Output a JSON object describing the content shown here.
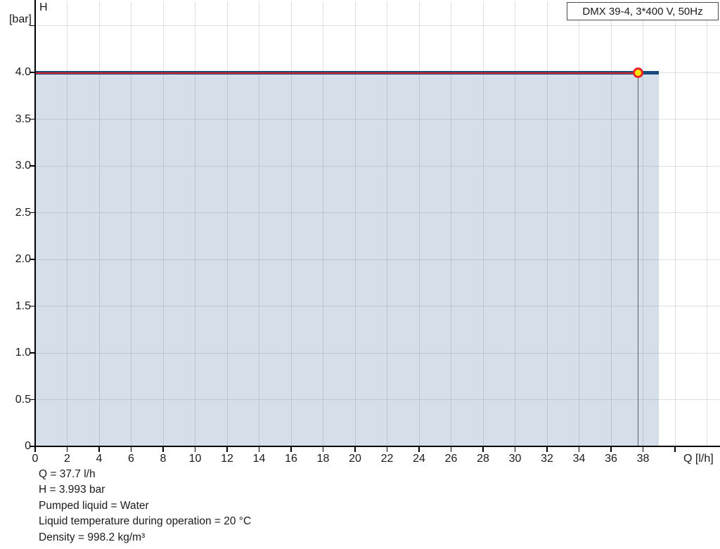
{
  "legend": {
    "text": "DMX 39-4, 3*400 V, 50Hz"
  },
  "chart_data": {
    "type": "line",
    "title": "",
    "xlabel": "Q [l/h]",
    "ylabel": "H [bar]",
    "ylabel_lines": [
      "H",
      "[bar]"
    ],
    "xlim": [
      0,
      42.8
    ],
    "ylim": [
      0,
      4.77
    ],
    "grid": true,
    "legend_position": "top-right",
    "x_ticks": [
      {
        "v": 0,
        "label": "0"
      },
      {
        "v": 2,
        "label": "2"
      },
      {
        "v": 4,
        "label": "4"
      },
      {
        "v": 6,
        "label": "6"
      },
      {
        "v": 8,
        "label": "8"
      },
      {
        "v": 10,
        "label": "10"
      },
      {
        "v": 12,
        "label": "12"
      },
      {
        "v": 14,
        "label": "14"
      },
      {
        "v": 16,
        "label": "16"
      },
      {
        "v": 18,
        "label": "18"
      },
      {
        "v": 20,
        "label": "20"
      },
      {
        "v": 22,
        "label": "22"
      },
      {
        "v": 24,
        "label": "24"
      },
      {
        "v": 26,
        "label": "26"
      },
      {
        "v": 28,
        "label": "28"
      },
      {
        "v": 30,
        "label": "30"
      },
      {
        "v": 32,
        "label": "32"
      },
      {
        "v": 34,
        "label": "34"
      },
      {
        "v": 36,
        "label": "36"
      },
      {
        "v": 38,
        "label": "38"
      },
      {
        "v": 40,
        "label": ""
      },
      {
        "v": 42,
        "label": "",
        "tick": false
      }
    ],
    "y_ticks": [
      {
        "v": 0,
        "label": "0"
      },
      {
        "v": 0.5,
        "label": "0.5"
      },
      {
        "v": 1,
        "label": "1.0"
      },
      {
        "v": 1.5,
        "label": "1.5"
      },
      {
        "v": 2,
        "label": "2.0"
      },
      {
        "v": 2.5,
        "label": "2.5"
      },
      {
        "v": 3,
        "label": "3.0"
      },
      {
        "v": 3.5,
        "label": "3.5"
      },
      {
        "v": 4,
        "label": "4.0"
      },
      {
        "v": 4.5,
        "label": ""
      }
    ],
    "series": [
      {
        "name": "DMX 39-4, 3*400 V, 50Hz",
        "x": [
          0,
          39
        ],
        "y": [
          3.998,
          3.998
        ],
        "color": "#17497f",
        "area_fill": "#d5dfe9"
      }
    ],
    "duty_point": {
      "q": 37.7,
      "h": 3.993,
      "marker_fill": "#ffe500",
      "marker_ring": "#e8232f"
    },
    "indicator": {
      "h_line_color": "#d8232a",
      "q_line_color": "#566270"
    }
  },
  "annotations": {
    "lines": [
      "Q = 37.7 l/h",
      "H = 3.993 bar",
      "Pumped liquid = Water",
      "Liquid temperature during operation = 20 °C",
      "Density = 998.2 kg/m³"
    ]
  },
  "colors": {
    "grid": "#d9d9d9",
    "grid_on_area": "rgba(105,115,130,0.22)",
    "axis": "#000000",
    "text": "#1a1a1a"
  }
}
